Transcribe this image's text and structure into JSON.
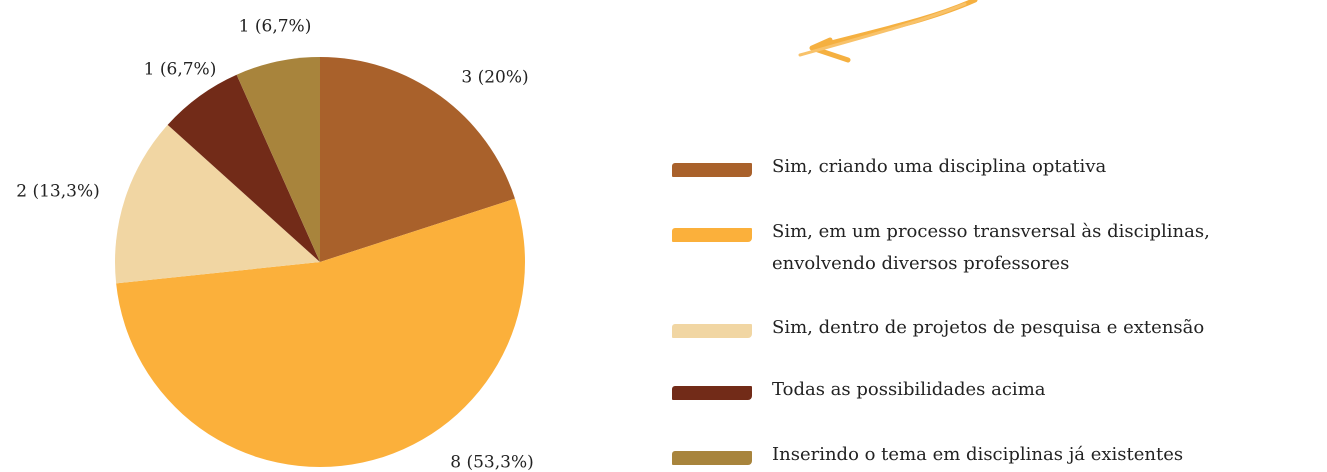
{
  "chart_data": {
    "type": "pie",
    "categories": [
      "Sim, criando uma disciplina optativa",
      "Sim, em um processo transversal às disciplinas, envolvendo diversos professores",
      "Sim, dentro de projetos de pesquisa e extensão",
      "Todas as possibilidades acima",
      "Inserindo o tema em disciplinas já existentes"
    ],
    "values": [
      3,
      8,
      2,
      1,
      1
    ],
    "value_labels": [
      "3 (20%)",
      "8 (53,3%)",
      "2 (13,3%)",
      "1 (6,7%)",
      "1 (6,7%)"
    ],
    "colors": [
      "#a9612b",
      "#fbb03b",
      "#f1d6a3",
      "#722b18",
      "#a8843c"
    ],
    "legend": "right"
  }
}
